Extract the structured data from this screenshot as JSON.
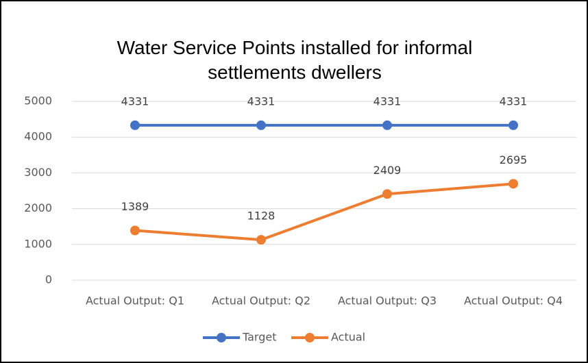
{
  "chart_data": {
    "type": "line",
    "title": "Water Service Points installed for informal settlements dwellers",
    "categories": [
      "Actual Output: Q1",
      "Actual Output: Q2",
      "Actual Output: Q3",
      "Actual Output: Q4"
    ],
    "series": [
      {
        "name": "Target",
        "color": "#4472c4",
        "values": [
          4331,
          4331,
          4331,
          4331
        ]
      },
      {
        "name": "Actual",
        "color": "#ed7d31",
        "values": [
          1389,
          1128,
          2409,
          2695
        ]
      }
    ],
    "ylim": [
      0,
      5000
    ],
    "yticks": [
      0,
      1000,
      2000,
      3000,
      4000,
      5000
    ],
    "grid": true,
    "legend": "bottom"
  }
}
